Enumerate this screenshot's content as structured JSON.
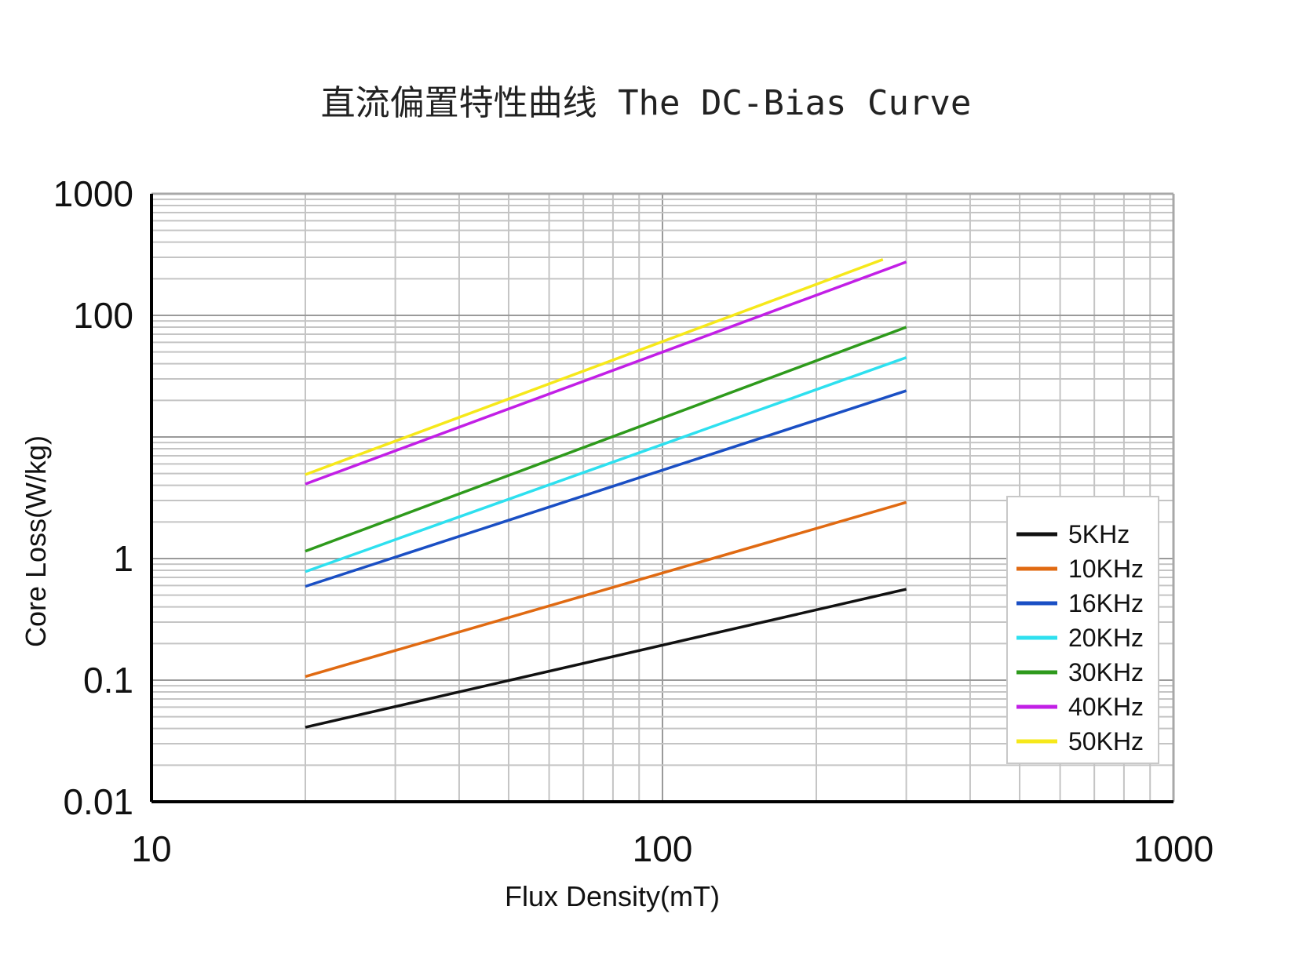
{
  "chart_data": {
    "type": "line",
    "title": "直流偏置特性曲线  The DC-Bias Curve",
    "xlabel": "Flux Density(mT)",
    "ylabel": "Core Loss(W/kg)",
    "xscale": "log",
    "yscale": "log",
    "xlim": [
      10,
      1000
    ],
    "ylim": [
      0.01,
      1000
    ],
    "x_ticks": [
      "10",
      "100",
      "1000"
    ],
    "y_ticks": [
      "0.01",
      "0.1",
      "1",
      "100",
      "1000"
    ],
    "y_tick_values": [
      0.01,
      0.1,
      1,
      100,
      1000
    ],
    "grid": true,
    "legend_position": "lower-right",
    "series": [
      {
        "name": "5KHz",
        "color": "#111111",
        "points": [
          [
            20,
            0.041
          ],
          [
            300,
            0.56
          ]
        ]
      },
      {
        "name": "10KHz",
        "color": "#e06a12",
        "points": [
          [
            20,
            0.107
          ],
          [
            300,
            2.9
          ]
        ]
      },
      {
        "name": "16KHz",
        "color": "#1a4fc4",
        "points": [
          [
            20,
            0.59
          ],
          [
            300,
            24
          ]
        ]
      },
      {
        "name": "20KHz",
        "color": "#2ee0ef",
        "points": [
          [
            20,
            0.78
          ],
          [
            300,
            45
          ]
        ]
      },
      {
        "name": "30KHz",
        "color": "#2e9a1c",
        "points": [
          [
            20,
            1.15
          ],
          [
            300,
            80
          ]
        ]
      },
      {
        "name": "40KHz",
        "color": "#c21fe6",
        "points": [
          [
            20,
            4.1
          ],
          [
            300,
            275
          ]
        ]
      },
      {
        "name": "50KHz",
        "color": "#f6e81a",
        "points": [
          [
            20,
            4.9
          ],
          [
            270,
            288
          ]
        ]
      }
    ]
  }
}
